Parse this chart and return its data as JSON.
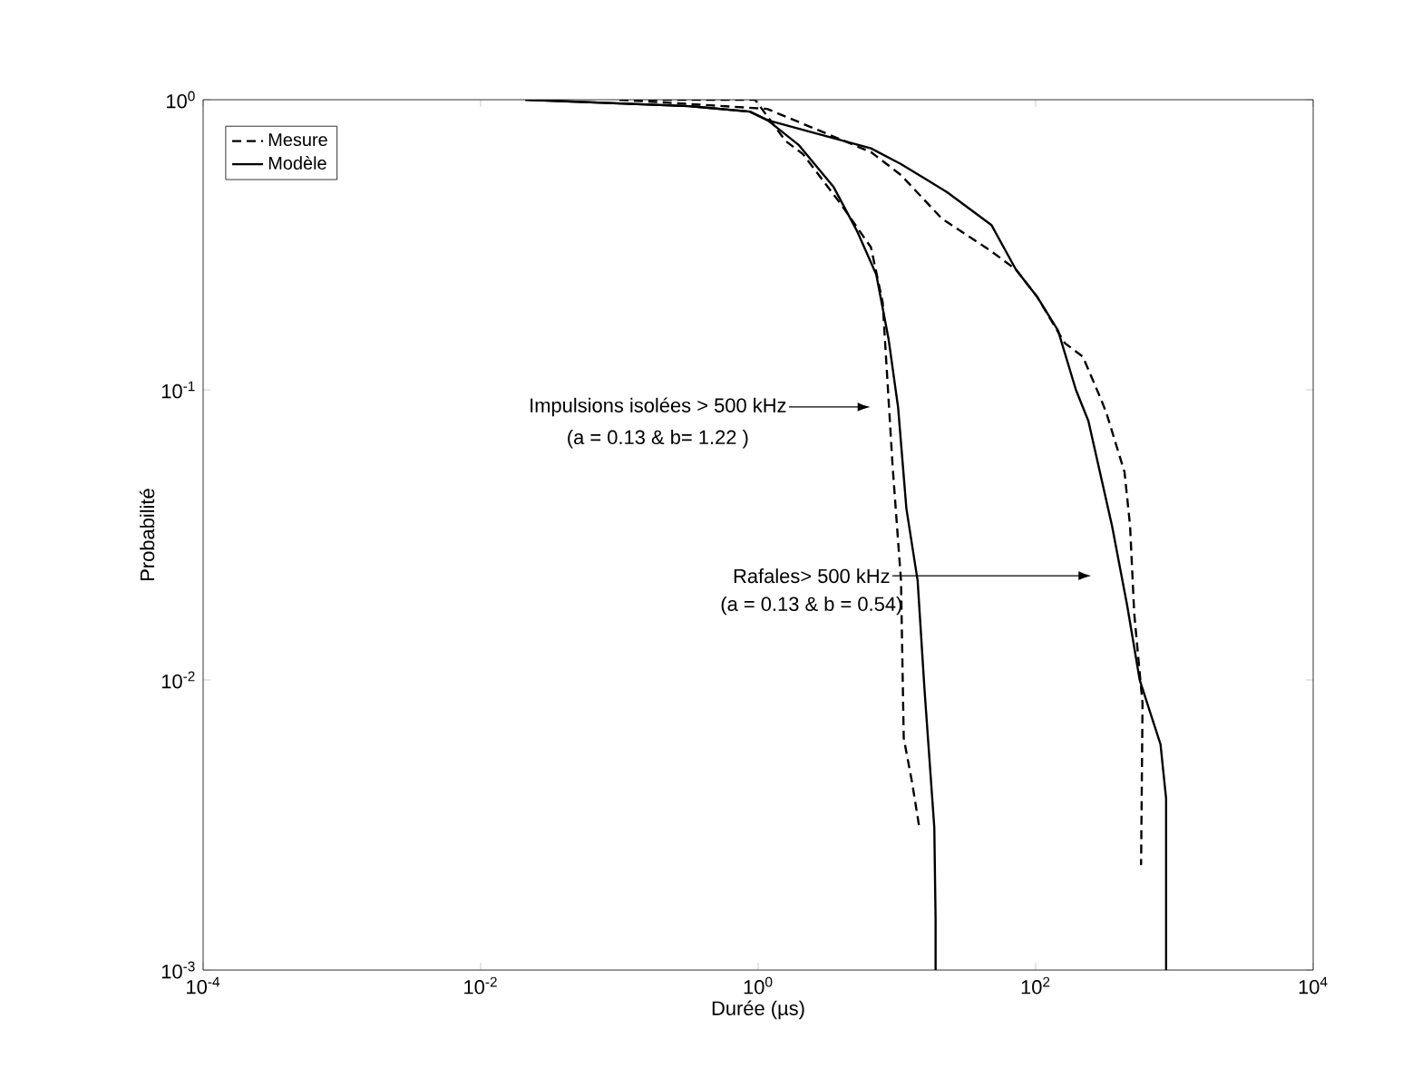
{
  "chart_data": {
    "type": "line",
    "xlabel": "Durée (µs)",
    "ylabel": "Probabilité",
    "log": "xy",
    "xlim": [
      0.0001,
      10000
    ],
    "ylim": [
      0.001,
      1
    ],
    "xticks": [
      {
        "value": 0.0001,
        "label": "10$^{-4}$"
      },
      {
        "value": 0.01,
        "label": "10$^{-2}$"
      },
      {
        "value": 1,
        "label": "10$^{0}$"
      },
      {
        "value": 100,
        "label": "10$^{2}$"
      },
      {
        "value": 10000,
        "label": "10$^{4}$"
      }
    ],
    "yticks": [
      {
        "value": 0.001,
        "label": "10$^{-3}$"
      },
      {
        "value": 0.01,
        "label": "10$^{-2}$"
      },
      {
        "value": 0.1,
        "label": "10$^{-1}$"
      },
      {
        "value": 1,
        "label": "10$^{0}$"
      }
    ],
    "legend": "top left",
    "marker": "none",
    "series": [
      {
        "name": "Mesure",
        "color": "#000000",
        "line_style": "dashed",
        "x": [
          0.1,
          0.95,
          1.58,
          2.1,
          3.9,
          6.5,
          7.9,
          9.3,
          10.7,
          11.2,
          12.9,
          14.5
        ],
        "values": [
          1,
          1,
          0.72,
          0.65,
          0.44,
          0.31,
          0.2,
          0.055,
          0.022,
          0.0063,
          0.0044,
          0.0031
        ]
      },
      {
        "name": "Modèle",
        "color": "#000000",
        "line_style": "solid",
        "x": [
          0.021,
          0.32,
          0.87,
          1.17,
          1.95,
          3.5,
          5.2,
          7.1,
          8.7,
          10.2,
          11.7,
          14.1,
          15.8,
          18.6,
          19,
          19
        ],
        "values": [
          1,
          0.95,
          0.91,
          0.85,
          0.7,
          0.5,
          0.35,
          0.25,
          0.15,
          0.087,
          0.039,
          0.022,
          0.0093,
          0.0031,
          0.0015,
          0.001
        ]
      },
      {
        "color": "#000000",
        "line_style": "dashed",
        "x": [
          0.1,
          1.16,
          6.5,
          10.7,
          21,
          48,
          72,
          102,
          162,
          219,
          295,
          324,
          437,
          479,
          513,
          589,
          575
        ],
        "values": [
          1,
          0.93,
          0.66,
          0.55,
          0.39,
          0.3,
          0.26,
          0.21,
          0.145,
          0.13,
          0.093,
          0.083,
          0.052,
          0.034,
          0.017,
          0.0083,
          0.0023
        ]
      },
      {
        "color": "#000000",
        "line_style": "solid",
        "x": [
          0.021,
          0.32,
          0.87,
          1.17,
          6.5,
          10.7,
          23,
          48,
          72,
          102,
          145,
          195,
          240,
          355,
          457,
          562,
          794,
          871,
          871
        ],
        "values": [
          1,
          0.95,
          0.91,
          0.85,
          0.68,
          0.6,
          0.48,
          0.37,
          0.26,
          0.21,
          0.16,
          0.1,
          0.078,
          0.034,
          0.018,
          0.01,
          0.006,
          0.0039,
          0.001
        ]
      }
    ],
    "annotations": [
      "Impulsions isolées > 500 kHz",
      "(a = 0.13 & b= 1.22 )",
      "Rafales> 500 kHz",
      "(a = 0.13 & b = 0.54)"
    ]
  }
}
